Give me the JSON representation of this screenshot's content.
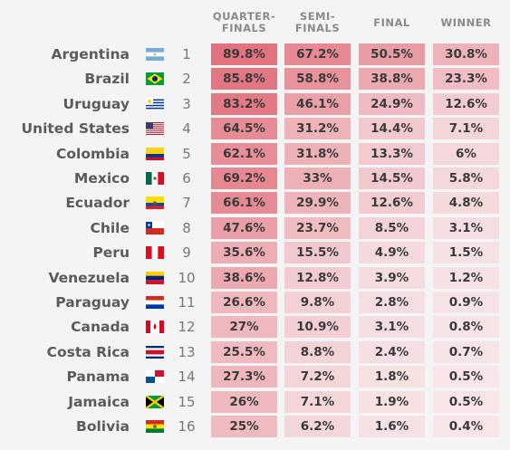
{
  "columns": [
    "QUARTER-\nFINALS",
    "SEMI-\nFINALS",
    "FINAL",
    "WINNER"
  ],
  "teams": [
    {
      "name": "Argentina",
      "rank": "1",
      "flag": "argentina-flag",
      "values": [
        "89.8%",
        "67.2%",
        "50.5%",
        "30.8%"
      ]
    },
    {
      "name": "Brazil",
      "rank": "2",
      "flag": "brazil-flag",
      "values": [
        "85.8%",
        "58.8%",
        "38.8%",
        "23.3%"
      ]
    },
    {
      "name": "Uruguay",
      "rank": "3",
      "flag": "uruguay-flag",
      "values": [
        "83.2%",
        "46.1%",
        "24.9%",
        "12.6%"
      ]
    },
    {
      "name": "United States",
      "rank": "4",
      "flag": "united-states-flag",
      "values": [
        "64.5%",
        "31.2%",
        "14.4%",
        "7.1%"
      ]
    },
    {
      "name": "Colombia",
      "rank": "5",
      "flag": "colombia-flag",
      "values": [
        "62.1%",
        "31.8%",
        "13.3%",
        "6%"
      ]
    },
    {
      "name": "Mexico",
      "rank": "6",
      "flag": "mexico-flag",
      "values": [
        "69.2%",
        "33%",
        "14.5%",
        "5.8%"
      ]
    },
    {
      "name": "Ecuador",
      "rank": "7",
      "flag": "ecuador-flag",
      "values": [
        "66.1%",
        "29.9%",
        "12.6%",
        "4.8%"
      ]
    },
    {
      "name": "Chile",
      "rank": "8",
      "flag": "chile-flag",
      "values": [
        "47.6%",
        "23.7%",
        "8.5%",
        "3.1%"
      ]
    },
    {
      "name": "Peru",
      "rank": "9",
      "flag": "peru-flag",
      "values": [
        "35.6%",
        "15.5%",
        "4.9%",
        "1.5%"
      ]
    },
    {
      "name": "Venezuela",
      "rank": "10",
      "flag": "venezuela-flag",
      "values": [
        "38.6%",
        "12.8%",
        "3.9%",
        "1.2%"
      ]
    },
    {
      "name": "Paraguay",
      "rank": "11",
      "flag": "paraguay-flag",
      "values": [
        "26.6%",
        "9.8%",
        "2.8%",
        "0.9%"
      ]
    },
    {
      "name": "Canada",
      "rank": "12",
      "flag": "canada-flag",
      "values": [
        "27%",
        "10.9%",
        "3.1%",
        "0.8%"
      ]
    },
    {
      "name": "Costa Rica",
      "rank": "13",
      "flag": "costa-rica-flag",
      "values": [
        "25.5%",
        "8.8%",
        "2.4%",
        "0.7%"
      ]
    },
    {
      "name": "Panama",
      "rank": "14",
      "flag": "panama-flag",
      "values": [
        "27.3%",
        "7.2%",
        "1.8%",
        "0.5%"
      ]
    },
    {
      "name": "Jamaica",
      "rank": "15",
      "flag": "jamaica-flag",
      "values": [
        "26%",
        "7.1%",
        "1.9%",
        "0.5%"
      ]
    },
    {
      "name": "Bolivia",
      "rank": "16",
      "flag": "bolivia-flag",
      "values": [
        "25%",
        "6.2%",
        "1.6%",
        "0.4%"
      ]
    }
  ],
  "colors": {
    "low": "#f7e7e9",
    "high": "#e2727f",
    "background": "#f4f4f4"
  },
  "chart_data": {
    "type": "table",
    "columns": [
      "QUARTER-FINALS",
      "SEMI-FINALS",
      "FINAL",
      "WINNER"
    ],
    "rows": [
      "Argentina",
      "Brazil",
      "Uruguay",
      "United States",
      "Colombia",
      "Mexico",
      "Ecuador",
      "Chile",
      "Peru",
      "Venezuela",
      "Paraguay",
      "Canada",
      "Costa Rica",
      "Panama",
      "Jamaica",
      "Bolivia"
    ],
    "series": [
      {
        "name": "QUARTER-FINALS",
        "values": [
          89.8,
          85.8,
          83.2,
          64.5,
          62.1,
          69.2,
          66.1,
          47.6,
          35.6,
          38.6,
          26.6,
          27,
          25.5,
          27.3,
          26,
          25
        ]
      },
      {
        "name": "SEMI-FINALS",
        "values": [
          67.2,
          58.8,
          46.1,
          31.2,
          31.8,
          33,
          29.9,
          23.7,
          15.5,
          12.8,
          9.8,
          10.9,
          8.8,
          7.2,
          7.1,
          6.2
        ]
      },
      {
        "name": "FINAL",
        "values": [
          50.5,
          38.8,
          24.9,
          14.4,
          13.3,
          14.5,
          12.6,
          8.5,
          4.9,
          3.9,
          2.8,
          3.1,
          2.4,
          1.8,
          1.9,
          1.6
        ]
      },
      {
        "name": "WINNER",
        "values": [
          30.8,
          23.3,
          12.6,
          7.1,
          6,
          5.8,
          4.8,
          3.1,
          1.5,
          1.2,
          0.9,
          0.8,
          0.7,
          0.5,
          0.5,
          0.4
        ]
      }
    ],
    "unit": "%"
  }
}
